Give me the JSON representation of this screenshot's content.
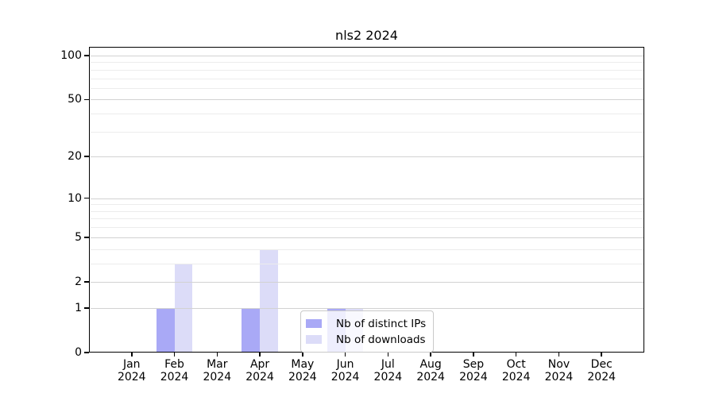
{
  "chart_data": {
    "type": "bar",
    "title": "nls2 2024",
    "categories": [
      "Jan",
      "Feb",
      "Mar",
      "Apr",
      "May",
      "Jun",
      "Jul",
      "Aug",
      "Sep",
      "Oct",
      "Nov",
      "Dec"
    ],
    "x_tick_sublabel": "2024",
    "series": [
      {
        "name": "Nb of distinct IPs",
        "color": "#a9a9f6",
        "values": [
          0,
          1,
          0,
          1,
          0,
          1,
          0,
          0,
          0,
          0,
          0,
          0
        ]
      },
      {
        "name": "Nb of downloads",
        "color": "#dcdcf8",
        "values": [
          0,
          3,
          0,
          4,
          0,
          1,
          0,
          0,
          0,
          0,
          0,
          0
        ]
      }
    ],
    "y_axis": {
      "ticks": [
        0,
        1,
        2,
        5,
        10,
        20,
        50,
        100
      ],
      "minor_gridlines": [
        3,
        4,
        6,
        7,
        8,
        9,
        30,
        40,
        60,
        70,
        80,
        90
      ],
      "scale": "log10(1+x)",
      "range": [
        0,
        100
      ]
    },
    "grid": true,
    "legend": {
      "position": "inside-bottom-center",
      "items": [
        "Nb of distinct IPs",
        "Nb of downloads"
      ]
    }
  },
  "colors": {
    "grid_major": "#d2d2d2",
    "grid_minor": "#ececec",
    "axis": "#000000",
    "legend_border": "#c9c9c9",
    "background": "#ffffff"
  }
}
